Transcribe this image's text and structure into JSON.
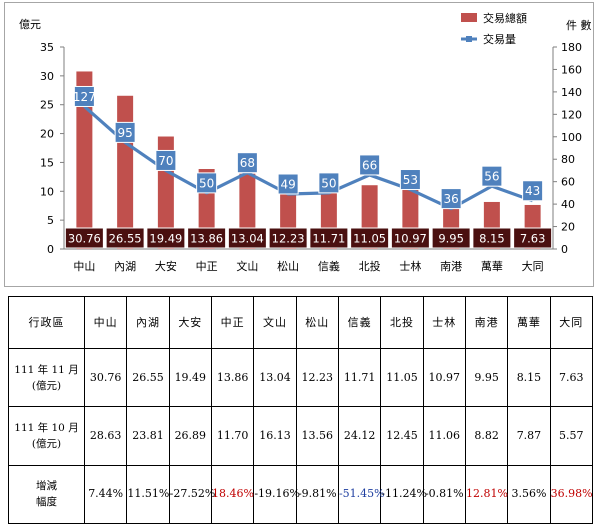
{
  "chart_data": {
    "type": "bar",
    "categories": [
      "中山",
      "內湖",
      "大安",
      "中正",
      "文山",
      "松山",
      "信義",
      "北投",
      "士林",
      "南港",
      "萬華",
      "大同"
    ],
    "series": [
      {
        "name": "交易總額",
        "type": "bar",
        "axis": "left",
        "color": "#c0504d",
        "values": [
          30.76,
          26.55,
          19.49,
          13.86,
          13.04,
          12.23,
          11.71,
          11.05,
          10.97,
          9.95,
          8.15,
          7.63
        ]
      },
      {
        "name": "交易量",
        "type": "line",
        "axis": "right",
        "color": "#4f81bd",
        "values": [
          127,
          95,
          70,
          50,
          68,
          49,
          50,
          66,
          53,
          36,
          56,
          43
        ]
      }
    ],
    "ylabel_left": "億元",
    "ylabel_right": "件 數",
    "ylim_left": [
      0,
      35
    ],
    "ylim_right": [
      0,
      180
    ],
    "yticks_left": [
      0,
      5,
      10,
      15,
      20,
      25,
      30,
      35
    ],
    "yticks_right": [
      0,
      20,
      40,
      60,
      80,
      100,
      120,
      140,
      160,
      180
    ],
    "bar_label_bg": "#4a1010",
    "line_label_bg": "#4f81bd",
    "legend_position": "top-right",
    "grid": false
  },
  "table": {
    "header": [
      "行政區",
      "中山",
      "內湖",
      "大安",
      "中正",
      "文山",
      "松山",
      "信義",
      "北投",
      "士林",
      "南港",
      "萬華",
      "大同"
    ],
    "rows": [
      {
        "label_line1": "111 年 11 月",
        "label_line2": "(億元)",
        "cells": [
          "30.76",
          "26.55",
          "19.49",
          "13.86",
          "13.04",
          "12.23",
          "11.71",
          "11.05",
          "10.97",
          "9.95",
          "8.15",
          "7.63"
        ]
      },
      {
        "label_line1": "111 年 10 月",
        "label_line2": "(億元)",
        "cells": [
          "28.63",
          "23.81",
          "26.89",
          "11.70",
          "16.13",
          "13.56",
          "24.12",
          "12.45",
          "11.06",
          "8.82",
          "7.87",
          "5.57"
        ]
      },
      {
        "label_line1": "增減",
        "label_line2": "幅度",
        "cells": [
          "7.44%",
          "11.51%",
          "-27.52%",
          "18.46%",
          "-19.16%",
          "-9.81%",
          "-51.45%",
          "-11.24%",
          "-0.81%",
          "12.81%",
          "3.56%",
          "36.98%"
        ],
        "cell_colors": [
          "",
          "",
          "",
          "#c00000",
          "",
          "",
          "#1f3fa0",
          "",
          "",
          "#c00000",
          "",
          "#c00000"
        ]
      }
    ]
  }
}
